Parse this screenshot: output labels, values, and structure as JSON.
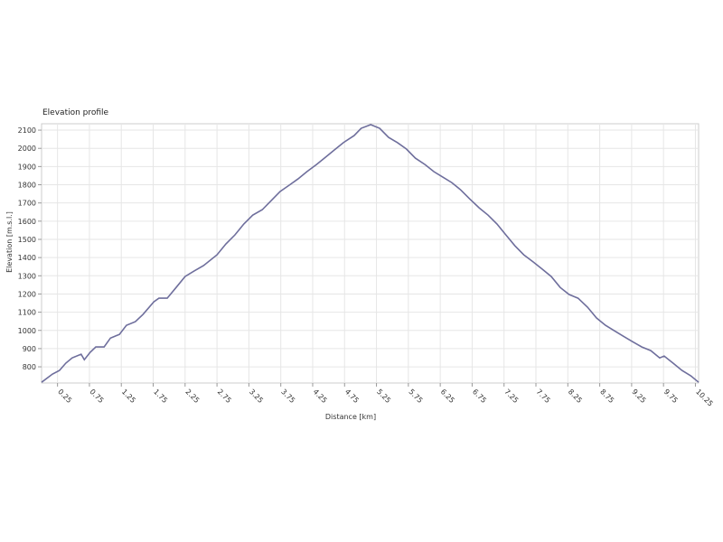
{
  "chart_data": {
    "type": "line",
    "title": "Elevation profile",
    "x_label": "Distance [km]",
    "y_label": "Elevation [m.s.l.]",
    "xlim": [
      0,
      10.3
    ],
    "ylim": [
      711,
      2135
    ],
    "xticks": [
      0.25,
      0.75,
      1.25,
      1.75,
      2.25,
      2.75,
      3.25,
      3.75,
      4.25,
      4.75,
      5.25,
      5.75,
      6.25,
      6.75,
      7.25,
      7.75,
      8.25,
      8.75,
      9.25,
      9.75,
      10.25
    ],
    "yticks": [
      800,
      900,
      1000,
      1100,
      1200,
      1300,
      1400,
      1500,
      1600,
      1700,
      1800,
      1900,
      2000,
      2100
    ],
    "grid": true,
    "series": [
      {
        "name": "Elevation",
        "color": "#6e6e9c",
        "x": [
          0,
          0.17,
          0.28,
          0.38,
          0.48,
          0.62,
          0.67,
          0.76,
          0.85,
          0.98,
          1.08,
          1.22,
          1.33,
          1.47,
          1.59,
          1.76,
          1.84,
          1.97,
          2.11,
          2.25,
          2.39,
          2.54,
          2.75,
          2.89,
          3.03,
          3.17,
          3.31,
          3.46,
          3.6,
          3.74,
          3.88,
          4.02,
          4.16,
          4.31,
          4.45,
          4.59,
          4.73,
          4.9,
          5.01,
          5.16,
          5.3,
          5.44,
          5.58,
          5.72,
          5.86,
          6.01,
          6.15,
          6.29,
          6.43,
          6.57,
          6.71,
          6.86,
          7.0,
          7.14,
          7.28,
          7.42,
          7.56,
          7.71,
          7.85,
          7.99,
          8.13,
          8.27,
          8.41,
          8.56,
          8.7,
          8.84,
          8.98,
          9.12,
          9.26,
          9.41,
          9.55,
          9.69,
          9.76,
          9.9,
          10.04,
          10.18,
          10.3
        ],
        "values": [
          715,
          760,
          780,
          820,
          849,
          869,
          839,
          879,
          909,
          909,
          958,
          978,
          1028,
          1048,
          1088,
          1157,
          1177,
          1177,
          1236,
          1296,
          1326,
          1356,
          1415,
          1475,
          1524,
          1584,
          1633,
          1663,
          1713,
          1763,
          1797,
          1832,
          1872,
          1911,
          1951,
          1991,
          2031,
          2070,
          2110,
          2130,
          2110,
          2060,
          2031,
          1996,
          1946,
          1911,
          1872,
          1842,
          1812,
          1772,
          1723,
          1673,
          1633,
          1584,
          1524,
          1465,
          1415,
          1375,
          1336,
          1296,
          1236,
          1197,
          1177,
          1127,
          1068,
          1028,
          998,
          968,
          939,
          909,
          889,
          849,
          859,
          820,
          780,
          750,
          715
        ]
      }
    ]
  }
}
